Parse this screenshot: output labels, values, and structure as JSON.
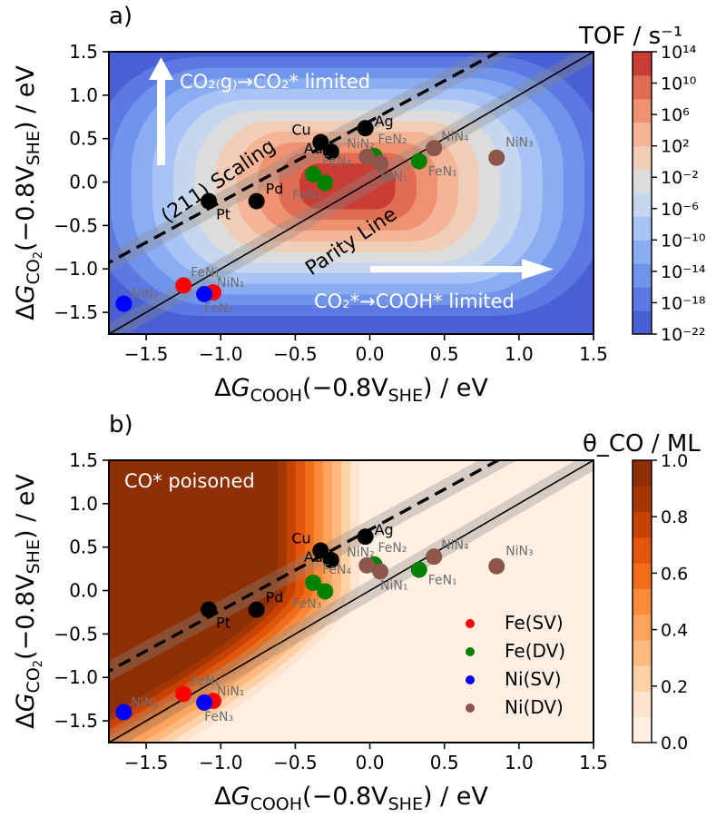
{
  "chart_data": [
    {
      "type": "heatmap",
      "panel_label": "a)",
      "xlabel": "ΔG_COOH(−0.8V_SHE) / eV",
      "ylabel": "ΔG_CO2(−0.8V_SHE) / eV",
      "xlim": [
        -1.75,
        1.5
      ],
      "ylim": [
        -1.75,
        1.5
      ],
      "x_ticks": [
        "−1.5",
        "−1.0",
        "−0.5",
        "0.0",
        "0.5",
        "1.0",
        "1.5"
      ],
      "y_ticks": [
        "1.5",
        "1.0",
        "0.5",
        "0.0",
        "−0.5",
        "−1.0",
        "−1.5"
      ],
      "colorbar": {
        "title": "TOF / s⁻¹",
        "ticks": [
          "10¹⁴",
          "10¹⁰",
          "10⁶",
          "10²",
          "10⁻²",
          "10⁻⁶",
          "10⁻¹⁰",
          "10⁻¹⁴",
          "10⁻¹⁸",
          "10⁻²²"
        ],
        "log_range": [
          -22,
          14
        ]
      },
      "contour_center": [
        -0.15,
        -0.05
      ],
      "contour_colors": [
        "#4860d3",
        "#5b78e3",
        "#7094ec",
        "#8aacf3",
        "#a8c3f5",
        "#c6d6ef",
        "#dcdcdc",
        "#f0cdb7",
        "#f4b497",
        "#ee9272",
        "#e06c53",
        "#c93d35"
      ],
      "annotations": {
        "top_arrow": "CO₂₍g₎→CO₂* limited",
        "bottom_arrow": "CO₂*→COOH* limited",
        "scaling": "(211) Scaling",
        "parity": "Parity Line"
      },
      "lines": {
        "parity": {
          "slope": 1,
          "intercept": 0
        },
        "scaling": {
          "slope": 0.93,
          "intercept": 0.7
        }
      },
      "points": [
        {
          "label": "Ag",
          "x": -0.03,
          "y": 0.62,
          "group": "metal"
        },
        {
          "label": "Cu",
          "x": -0.33,
          "y": 0.46,
          "group": "metal"
        },
        {
          "label": "Au",
          "x": -0.26,
          "y": 0.35,
          "group": "metal"
        },
        {
          "label": "Pd",
          "x": -0.76,
          "y": -0.22,
          "group": "metal"
        },
        {
          "label": "Pt",
          "x": -1.08,
          "y": -0.22,
          "group": "metal"
        },
        {
          "label": "FeN₂",
          "x": 0.03,
          "y": 0.3,
          "group": "Fe(DV)"
        },
        {
          "label": "FeN₄",
          "x": -0.38,
          "y": 0.09,
          "group": "Fe(DV)"
        },
        {
          "label": "FeN₃",
          "x": -0.3,
          "y": -0.01,
          "group": "Fe(DV)"
        },
        {
          "label": "FeN₁",
          "x": 0.33,
          "y": 0.24,
          "group": "Fe(DV)"
        },
        {
          "label": "NiN₂",
          "x": -0.02,
          "y": 0.29,
          "group": "Ni(DV)"
        },
        {
          "label": "NiN₁",
          "x": 0.07,
          "y": 0.22,
          "group": "Ni(DV)"
        },
        {
          "label": "NiN₄",
          "x": 0.43,
          "y": 0.39,
          "group": "Ni(DV)"
        },
        {
          "label": "NiN₃",
          "x": 0.85,
          "y": 0.28,
          "group": "Ni(DV)"
        },
        {
          "label": "FeN₁",
          "x": -1.25,
          "y": -1.19,
          "group": "Fe(SV)"
        },
        {
          "label": "NiN₁",
          "x": -1.05,
          "y": -1.27,
          "group": "Fe(SV)"
        },
        {
          "label": "FeN₃",
          "x": -1.11,
          "y": -1.29,
          "group": "Ni(SV)"
        },
        {
          "label": "NiN₂",
          "x": -1.65,
          "y": -1.4,
          "group": "Ni(SV)"
        }
      ]
    },
    {
      "type": "heatmap",
      "panel_label": "b)",
      "xlabel": "ΔG_COOH(−0.8V_SHE) / eV",
      "ylabel": "ΔG_CO2(−0.8V_SHE) / eV",
      "xlim": [
        -1.75,
        1.5
      ],
      "ylim": [
        -1.75,
        1.5
      ],
      "x_ticks": [
        "−1.5",
        "−1.0",
        "−0.5",
        "0.0",
        "0.5",
        "1.0",
        "1.5"
      ],
      "y_ticks": [
        "1.5",
        "1.0",
        "0.5",
        "0.0",
        "−0.5",
        "−1.0",
        "−1.5"
      ],
      "colorbar": {
        "title": "θ_CO / ML",
        "ticks": [
          "1.0",
          "0.8",
          "0.6",
          "0.4",
          "0.2",
          "0.0"
        ],
        "range": [
          0,
          1
        ]
      },
      "contour_colors": [
        "#fff0e3",
        "#fee4ce",
        "#fdd0a6",
        "#fdb97e",
        "#fda35c",
        "#fb8a3a",
        "#f06d1a",
        "#e0560b",
        "#c54203",
        "#a33603",
        "#8e2e03"
      ],
      "annotations": {
        "poisoned": "CO* poisoned"
      },
      "legend": {
        "position": "lower-right",
        "items": [
          {
            "label": "Fe(SV)",
            "color": "#ff0000"
          },
          {
            "label": "Fe(DV)",
            "color": "#008000"
          },
          {
            "label": "Ni(SV)",
            "color": "#0000ff"
          },
          {
            "label": "Ni(DV)",
            "color": "#8c564b"
          }
        ]
      }
    }
  ],
  "colors": {
    "metal": "#000000",
    "Fe(SV)": "#ff0000",
    "Fe(DV)": "#008000",
    "Ni(SV)": "#0000ff",
    "Ni(DV)": "#8c564b",
    "label_dim": "#6e6e6e"
  }
}
